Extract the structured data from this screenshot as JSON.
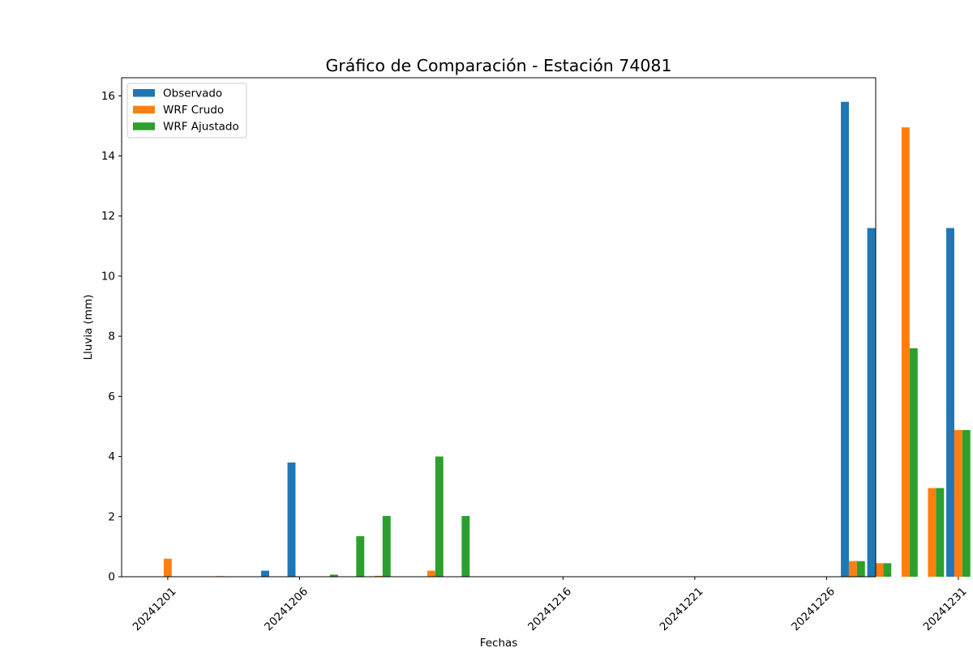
{
  "chart_data": {
    "type": "bar",
    "title": "Gráfico de Comparación - Estación 74081",
    "xlabel": "Fechas",
    "ylabel": "Lluvia (mm)",
    "ylim": [
      0,
      16.6
    ],
    "yticks": [
      0,
      2,
      4,
      6,
      8,
      10,
      12,
      14,
      16
    ],
    "xtick_labels": [
      "20241201",
      "20241206",
      "20241216",
      "20241221",
      "20241226",
      "20241231"
    ],
    "grid": false,
    "legend_position": "top-left",
    "categories": [
      "20241201",
      "20241202",
      "20241203",
      "20241204",
      "20241205",
      "20241206",
      "20241207",
      "20241208",
      "20241209",
      "20241210",
      "20241211",
      "20241212",
      "20241213",
      "20241214",
      "20241215",
      "20241216",
      "20241217",
      "20241218",
      "20241219",
      "20241220",
      "20241221",
      "20241222",
      "20241223",
      "20241224",
      "20241225",
      "20241226",
      "20241227",
      "20241228",
      "20241229",
      "20241230",
      "20241231"
    ],
    "series": [
      {
        "name": "Observado",
        "color": "#1f77b4",
        "values": [
          0,
          0,
          0,
          0,
          0.2,
          3.8,
          0,
          0,
          0,
          0,
          0,
          0,
          0,
          0,
          0,
          0,
          0,
          0,
          0,
          0,
          0,
          0,
          0,
          0,
          0,
          0,
          15.8,
          11.6,
          0,
          0,
          11.6
        ]
      },
      {
        "name": "WRF Crudo",
        "color": "#ff7f0e",
        "values": [
          0.6,
          0,
          0.02,
          0,
          0,
          0,
          0,
          0,
          0.03,
          0,
          0.2,
          0,
          0,
          0,
          0,
          0,
          0,
          0,
          0,
          0,
          0,
          0,
          0,
          0,
          0,
          0,
          0.52,
          0.45,
          14.95,
          2.95,
          4.88
        ]
      },
      {
        "name": "WRF Ajustado",
        "color": "#2ca02c",
        "values": [
          0,
          0,
          0,
          0,
          0,
          0,
          0.07,
          1.35,
          2.02,
          0,
          4.0,
          2.02,
          0,
          0,
          0,
          0,
          0,
          0,
          0,
          0,
          0,
          0,
          0,
          0,
          0,
          0,
          0.52,
          0.45,
          7.6,
          2.95,
          4.88
        ]
      }
    ]
  }
}
